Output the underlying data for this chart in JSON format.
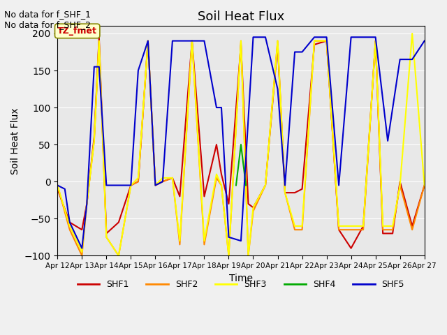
{
  "title": "Soil Heat Flux",
  "xlabel": "Time",
  "ylabel": "Soil Heat Flux",
  "ylim": [
    -100,
    210
  ],
  "yticks": [
    -100,
    -50,
    0,
    50,
    100,
    150,
    200
  ],
  "annotation_text": "No data for f_SHF_1\nNo data for f_SHF_2",
  "box_label": "TZ_fmet",
  "background_color": "#e8e8e8",
  "series": {
    "SHF1": {
      "color": "#cc0000",
      "x": [
        12,
        12.5,
        13,
        13.2,
        13.5,
        13.7,
        14,
        14.5,
        15,
        15.3,
        15.7,
        16,
        16.3,
        16.7,
        17,
        17.5,
        18,
        18.5,
        18.7,
        19,
        19.5,
        19.8,
        20,
        20.5,
        21,
        21.3,
        21.7,
        22,
        22.5,
        23,
        23.5,
        24,
        24.5,
        25,
        25.3,
        25.7,
        26,
        26.5,
        27
      ],
      "y": [
        -10,
        -55,
        -65,
        -30,
        60,
        195,
        -70,
        -55,
        -5,
        0,
        190,
        -5,
        0,
        5,
        -20,
        190,
        -20,
        50,
        10,
        -30,
        185,
        -30,
        -35,
        -5,
        185,
        -15,
        -15,
        -10,
        185,
        190,
        -65,
        -90,
        -60,
        190,
        -70,
        -70,
        0,
        -60,
        -5
      ]
    },
    "SHF2": {
      "color": "#ff8800",
      "x": [
        12,
        12.5,
        13,
        13.2,
        13.5,
        13.7,
        14,
        14.5,
        15,
        15.3,
        15.7,
        16,
        16.3,
        16.7,
        17,
        17.5,
        18,
        18.5,
        18.7,
        19,
        19.5,
        19.8,
        20,
        20.5,
        21,
        21.3,
        21.7,
        22,
        22.5,
        23,
        23.5,
        24,
        24.5,
        25,
        25.3,
        25.7,
        26,
        26.5,
        27
      ],
      "y": [
        -5,
        -65,
        -100,
        -30,
        55,
        190,
        -75,
        -100,
        -5,
        0,
        190,
        -5,
        0,
        5,
        -85,
        190,
        -85,
        5,
        -5,
        -100,
        190,
        -100,
        -40,
        -5,
        190,
        -15,
        -65,
        -65,
        190,
        190,
        -65,
        -65,
        -65,
        190,
        -65,
        -65,
        -5,
        -65,
        -5
      ]
    },
    "SHF3": {
      "color": "#ffff00",
      "x": [
        12,
        12.5,
        13,
        13.2,
        13.5,
        13.7,
        14,
        14.5,
        15,
        15.3,
        15.7,
        16,
        16.3,
        16.7,
        17,
        17.5,
        18,
        18.5,
        18.7,
        19,
        19.5,
        19.8,
        20,
        20.5,
        21,
        21.3,
        21.7,
        22,
        22.5,
        23,
        23.5,
        24,
        24.5,
        25,
        25.3,
        25.7,
        26,
        26.5,
        27
      ],
      "y": [
        -5,
        -60,
        -95,
        -30,
        55,
        190,
        -75,
        -100,
        -5,
        5,
        190,
        -5,
        5,
        5,
        -80,
        190,
        -80,
        10,
        -5,
        -100,
        190,
        -100,
        -35,
        -5,
        190,
        -15,
        -60,
        -60,
        190,
        190,
        -60,
        -60,
        -60,
        190,
        -60,
        -60,
        -5,
        200,
        -5
      ]
    },
    "SHF4": {
      "color": "#00aa00",
      "x": [
        19.3,
        19.5,
        19.7
      ],
      "y": [
        -5,
        50,
        -5
      ]
    },
    "SHF5": {
      "color": "#0000cc",
      "x": [
        12,
        12.3,
        12.5,
        13,
        13.2,
        13.5,
        13.7,
        14,
        14.5,
        15,
        15.3,
        15.7,
        16,
        16.3,
        16.7,
        17,
        17.5,
        18,
        18.5,
        18.7,
        19,
        19.5,
        20,
        20.5,
        21,
        21.3,
        21.7,
        22,
        22.5,
        23,
        23.5,
        24,
        24.5,
        25,
        25.5,
        26,
        26.5,
        27
      ],
      "y": [
        -5,
        -10,
        -55,
        -90,
        -30,
        155,
        155,
        -5,
        -5,
        -5,
        150,
        190,
        -5,
        0,
        190,
        190,
        190,
        190,
        100,
        100,
        -75,
        -80,
        195,
        195,
        125,
        -5,
        175,
        175,
        195,
        195,
        -5,
        195,
        195,
        195,
        55,
        165,
        165,
        190
      ]
    }
  },
  "legend_entries": [
    "SHF1",
    "SHF2",
    "SHF3",
    "SHF4",
    "SHF5"
  ],
  "legend_colors": [
    "#cc0000",
    "#ff8800",
    "#ffff00",
    "#00aa00",
    "#0000cc"
  ],
  "xtick_labels": [
    "Apr 12",
    "Apr 13",
    "Apr 14",
    "Apr 15",
    "Apr 16",
    "Apr 17",
    "Apr 18",
    "Apr 19",
    "Apr 20",
    "Apr 21",
    "Apr 22",
    "Apr 23",
    "Apr 24",
    "Apr 25",
    "Apr 26",
    "Apr 27"
  ],
  "xtick_positions": [
    12,
    13,
    14,
    15,
    16,
    17,
    18,
    19,
    20,
    21,
    22,
    23,
    24,
    25,
    26,
    27
  ]
}
